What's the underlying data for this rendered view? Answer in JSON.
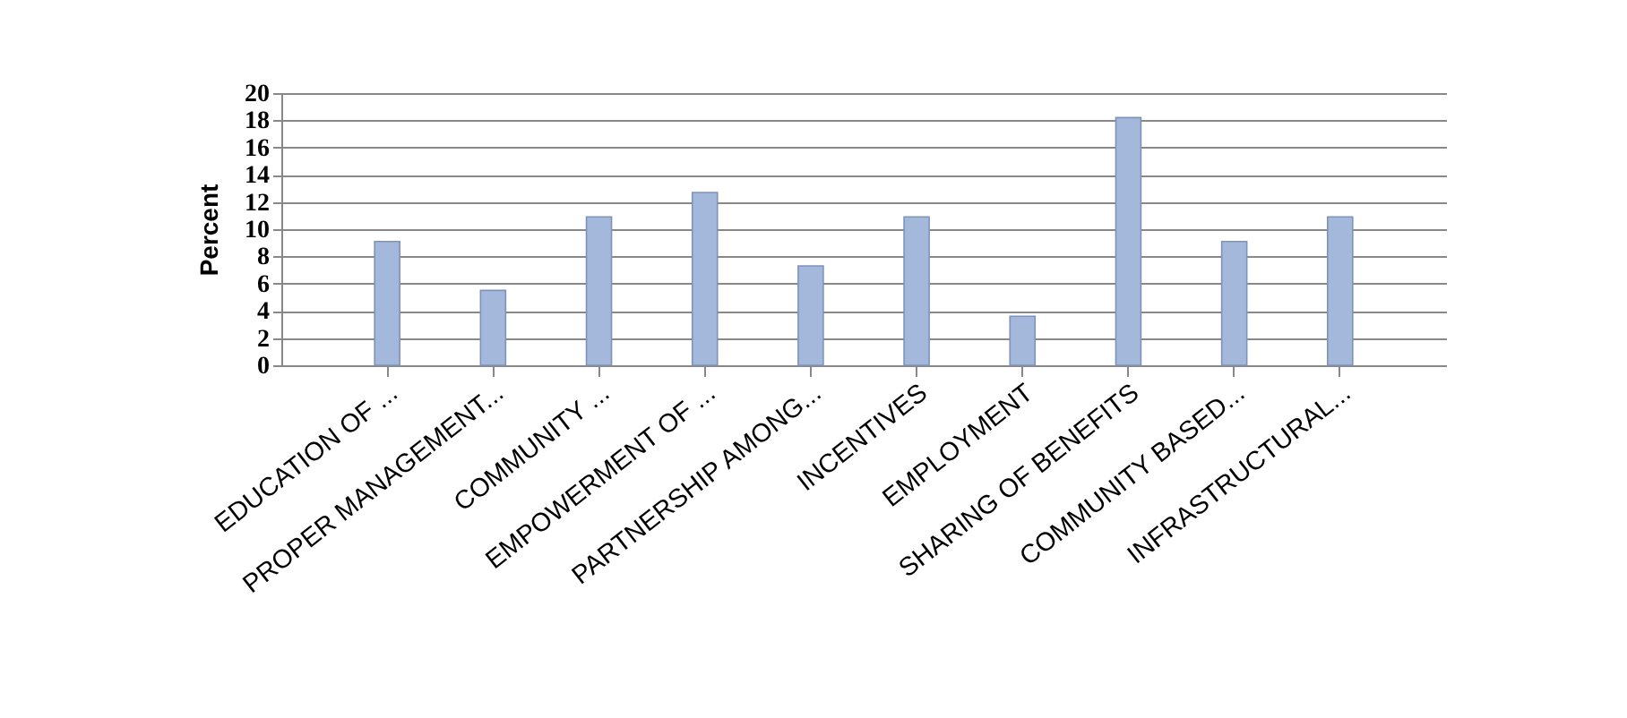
{
  "chart_data": {
    "type": "bar",
    "ylabel": "Percent",
    "categories": [
      "EDUCATION OF ...",
      "PROPER MANAGEMENT...",
      "COMMUNITY ...",
      "EMPOWERMENT OF ...",
      "PARTNERSHIP AMONG...",
      "INCENTIVES",
      "EMPLOYMENT",
      "SHARING OF BENEFITS",
      "COMMUNITY BASED...",
      "INFRASTRUCTURAL..."
    ],
    "values": [
      9.1,
      5.5,
      10.9,
      12.7,
      7.3,
      10.9,
      3.6,
      18.2,
      9.1,
      10.9
    ],
    "color": "#a4b8dc",
    "ylim": [
      0,
      20
    ],
    "yticks": [
      0,
      2,
      4,
      6,
      8,
      10,
      12,
      14,
      16,
      18,
      20
    ],
    "grid": "y"
  }
}
